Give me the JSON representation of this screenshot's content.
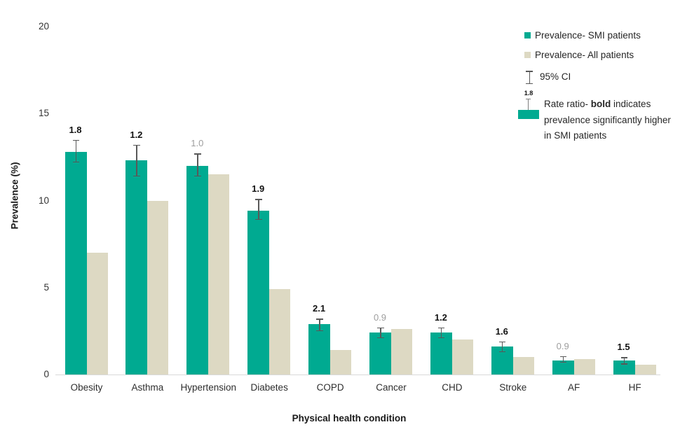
{
  "chart_data": {
    "type": "bar",
    "title": "",
    "xlabel": "Physical health condition",
    "ylabel": "Prevalence (%)",
    "ylim": [
      0,
      20
    ],
    "yticks": [
      0,
      5,
      10,
      15,
      20
    ],
    "grid": false,
    "legend_position": "top-right",
    "categories": [
      "Obesity",
      "Asthma",
      "Hypertension",
      "Diabetes",
      "COPD",
      "Cancer",
      "CHD",
      "Stroke",
      "AF",
      "HF"
    ],
    "series": [
      {
        "name": "Prevalence- SMI patients",
        "color": "#00aa91",
        "values": [
          12.8,
          12.3,
          12.0,
          9.4,
          2.9,
          2.4,
          2.4,
          1.6,
          0.8,
          0.8
        ],
        "ci_low": [
          12.2,
          11.4,
          11.4,
          8.9,
          2.5,
          2.1,
          2.1,
          1.3,
          0.7,
          0.6
        ],
        "ci_high": [
          13.5,
          13.2,
          12.7,
          10.1,
          3.2,
          2.7,
          2.7,
          1.9,
          1.05,
          1.0
        ]
      },
      {
        "name": "Prevalence- All patients",
        "color": "#ddd9c3",
        "values": [
          7.0,
          10.0,
          11.5,
          4.9,
          1.4,
          2.6,
          2.0,
          1.0,
          0.9,
          0.55
        ]
      }
    ],
    "rate_ratios": [
      {
        "value": "1.8",
        "bold": true
      },
      {
        "value": "1.2",
        "bold": true
      },
      {
        "value": "1.0",
        "bold": false
      },
      {
        "value": "1.9",
        "bold": true
      },
      {
        "value": "2.1",
        "bold": true
      },
      {
        "value": "0.9",
        "bold": false
      },
      {
        "value": "1.2",
        "bold": true
      },
      {
        "value": "1.6",
        "bold": true
      },
      {
        "value": "0.9",
        "bold": false
      },
      {
        "value": "1.5",
        "bold": true
      }
    ],
    "error_bar_color": "#595959",
    "axis_line_color": "#d9d9d9",
    "significant_label_color": "#111111",
    "nonsignificant_label_color": "#9e9e9e"
  },
  "legend": {
    "items": [
      {
        "label": "Prevalence- SMI patients",
        "swatch": "#00aa91"
      },
      {
        "label": "Prevalence- All patients",
        "swatch": "#ddd9c3"
      }
    ],
    "ci_label": "95% CI",
    "ratio_example": "1.8",
    "ratio_note": {
      "prefix": "Rate ratio- ",
      "bold_word": "bold",
      "suffix": " indicates prevalence significantly higher in SMI patients"
    }
  }
}
